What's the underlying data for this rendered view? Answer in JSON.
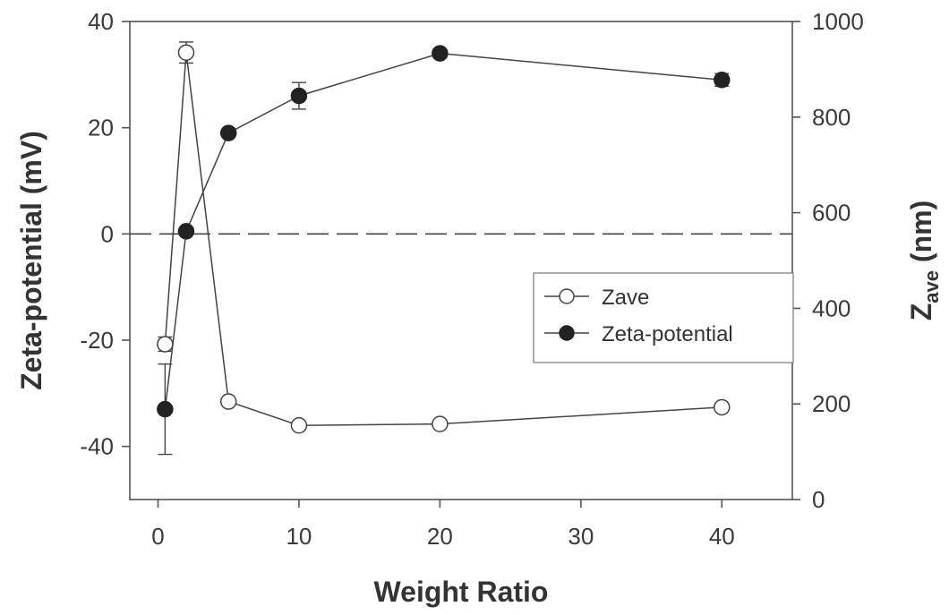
{
  "chart_data": {
    "type": "line",
    "xlabel": "Weight Ratio",
    "ylabel_left": "Zeta-potential (mV)",
    "ylabel_right_main": "Z",
    "ylabel_right_sub": "ave",
    "ylabel_right_unit": " (nm)",
    "xlim": [
      -2,
      45
    ],
    "ylim_left": [
      -50,
      40
    ],
    "ylim_right": [
      0,
      1000
    ],
    "xticks": [
      0,
      10,
      20,
      30,
      40
    ],
    "yticks_left": [
      -40,
      -20,
      0,
      20,
      40
    ],
    "yticks_right": [
      0,
      200,
      400,
      600,
      800,
      1000
    ],
    "reference_line": {
      "axis": "left",
      "y": 0,
      "style": "dashed"
    },
    "legend_position": "center-right",
    "grid": false,
    "series": [
      {
        "name": "Zave",
        "axis": "right",
        "marker": "open-circle",
        "x": [
          0.5,
          2,
          5,
          10,
          20,
          40
        ],
        "y": [
          325,
          935,
          205,
          155,
          158,
          193
        ],
        "err": [
          15,
          22,
          0,
          0,
          0,
          0
        ]
      },
      {
        "name": "Zeta-potential",
        "axis": "left",
        "marker": "filled-circle",
        "x": [
          0.5,
          2,
          5,
          10,
          20,
          40
        ],
        "y": [
          -33,
          0.5,
          19,
          26,
          34,
          29
        ],
        "err": [
          8.5,
          0,
          0,
          2.5,
          0.8,
          1.2
        ]
      }
    ]
  }
}
